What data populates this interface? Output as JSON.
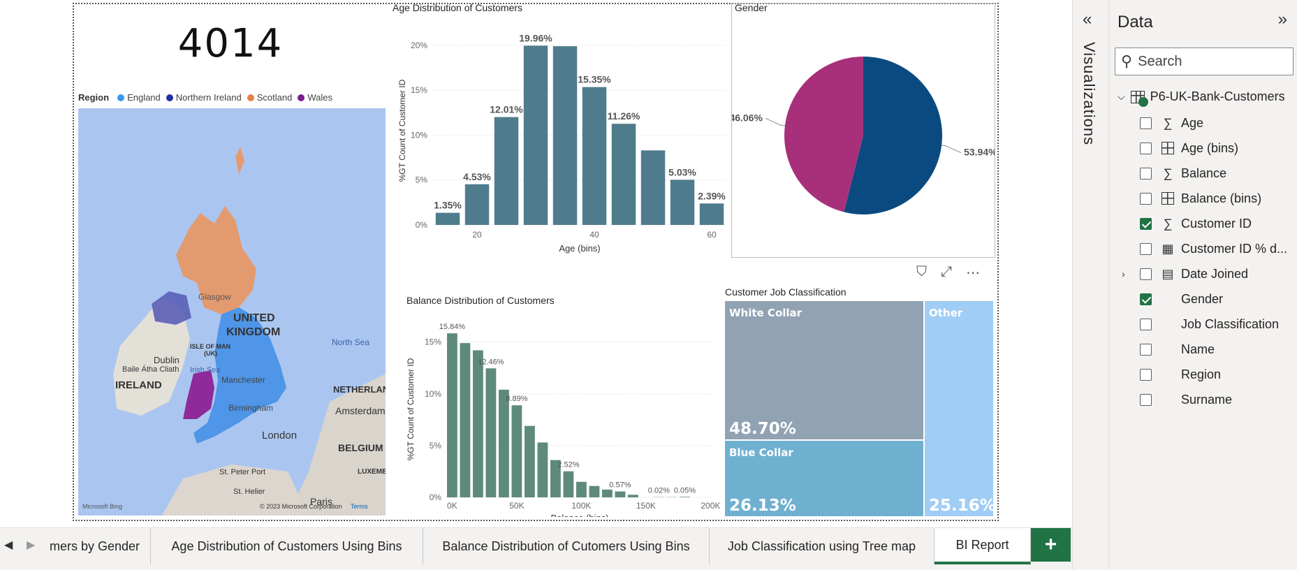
{
  "card": {
    "value": "4014"
  },
  "map": {
    "legend_label": "Region",
    "legend": [
      {
        "name": "England",
        "color": "#3599ef"
      },
      {
        "name": "Northern Ireland",
        "color": "#1f2fa0"
      },
      {
        "name": "Scotland",
        "color": "#e8804a"
      },
      {
        "name": "Wales",
        "color": "#7b1f90"
      }
    ],
    "labels": {
      "uk": "UNITED",
      "uk2": "KINGDOM",
      "ireland": "IRELAND",
      "north_sea": "North Sea",
      "irish_sea": "Irish Sea",
      "glasgow": "Glasgow",
      "dublin": "Dublin",
      "dublin2": "Baile Átha Cliath",
      "isle_of_man": "ISLE OF MAN",
      "isle_of_man2": "(UK)",
      "manchester": "Manchester",
      "birmingham": "Birmingham",
      "london": "London",
      "netherlands": "NETHERLAN",
      "amsterdam": "Amsterdam",
      "belgium": "BELGIUM",
      "luxembourg": "LUXEMBO",
      "st_peter_port": "St. Peter Port",
      "st_helier": "St. Helier",
      "paris": "Paris",
      "bing": "Microsoft Bing",
      "copyright": "© 2023 Microsoft Corporation",
      "terms": "Terms"
    }
  },
  "age_chart": {
    "title": "Age Distribution of Customers",
    "chart_data": {
      "type": "bar",
      "title": "Age Distribution of Customers",
      "xlabel": "Age (bins)",
      "ylabel": "%GT Count of Customer ID",
      "x": [
        15,
        20,
        25,
        30,
        35,
        40,
        45,
        50,
        55,
        60
      ],
      "values": [
        1.35,
        4.53,
        12.01,
        19.96,
        19.9,
        15.35,
        11.26,
        8.3,
        5.03,
        2.39
      ],
      "data_labels": [
        "1.35%",
        "4.53%",
        "12.01%",
        "19.96%",
        "",
        "15.35%",
        "11.26%",
        "",
        "5.03%",
        "2.39%"
      ],
      "xticks": [
        "20",
        "40",
        "60"
      ],
      "yticks": [
        "0%",
        "5%",
        "10%",
        "15%",
        "20%"
      ],
      "ylim": [
        0,
        21
      ]
    }
  },
  "gender_chart": {
    "title": "Gender",
    "chart_data": {
      "type": "pie",
      "title": "Gender",
      "slices": [
        {
          "label": "53.94%",
          "value": 53.94,
          "color": "#0a4a80"
        },
        {
          "label": "46.06%",
          "value": 46.06,
          "color": "#a8307a"
        }
      ]
    }
  },
  "balance_chart": {
    "title": "Balance Distribution of Customers",
    "chart_data": {
      "type": "bar",
      "title": "Balance Distribution of Customers",
      "xlabel": "Balance (bins)",
      "ylabel": "%GT Count of Customer ID",
      "x": [
        0,
        10,
        20,
        30,
        40,
        50,
        60,
        70,
        80,
        90,
        100,
        110,
        120,
        130,
        140,
        150,
        160,
        170,
        180
      ],
      "values": [
        15.84,
        14.9,
        14.2,
        12.46,
        10.4,
        8.89,
        6.9,
        5.3,
        3.6,
        2.52,
        1.5,
        1.1,
        0.75,
        0.57,
        0.25,
        0,
        0.02,
        0.02,
        0.05
      ],
      "data_labels": [
        "15.84%",
        "",
        "",
        "12.46%",
        "",
        "8.89%",
        "",
        "",
        "",
        "2.52%",
        "",
        "",
        "",
        "0.57%",
        "",
        "",
        "0.02%",
        "",
        "0.05%"
      ],
      "xticks": [
        "0K",
        "50K",
        "100K",
        "150K",
        "200K"
      ],
      "yticks": [
        "0%",
        "5%",
        "10%",
        "15%"
      ],
      "ylim": [
        0,
        17
      ]
    }
  },
  "treemap": {
    "title": "Customer Job Classification",
    "chart_data": {
      "type": "treemap",
      "items": [
        {
          "name": "White Collar",
          "value": "48.70%",
          "color": "#91a2b3"
        },
        {
          "name": "Blue Collar",
          "value": "26.13%",
          "color": "#6fb0d0"
        },
        {
          "name": "Other",
          "value": "25.16%",
          "color": "#a0cdf5"
        }
      ]
    }
  },
  "vis_pane": {
    "label": "Visualizations",
    "collapse_glyph": "«"
  },
  "data_pane": {
    "title": "Data",
    "expand_glyph": "»",
    "search_placeholder": "Search",
    "table_name": "P6-UK-Bank-Customers",
    "fields": [
      {
        "name": "Age",
        "icon": "sigma",
        "checked": false
      },
      {
        "name": "Age (bins)",
        "icon": "grid",
        "checked": false
      },
      {
        "name": "Balance",
        "icon": "sigma",
        "checked": false
      },
      {
        "name": "Balance (bins)",
        "icon": "grid",
        "checked": false
      },
      {
        "name": "Customer ID",
        "icon": "sigma",
        "checked": true
      },
      {
        "name": "Customer ID % d...",
        "icon": "calculator",
        "checked": false
      },
      {
        "name": "Date Joined",
        "icon": "calendar",
        "checked": false,
        "expandable": true
      },
      {
        "name": "Gender",
        "icon": "none",
        "checked": true
      },
      {
        "name": "Job Classification",
        "icon": "none",
        "checked": false
      },
      {
        "name": "Name",
        "icon": "none",
        "checked": false
      },
      {
        "name": "Region",
        "icon": "none",
        "checked": false
      },
      {
        "name": "Surname",
        "icon": "none",
        "checked": false
      }
    ]
  },
  "tabs": [
    {
      "label": "mers by Gender",
      "active": false
    },
    {
      "label": "Age Distribution of Customers Using Bins",
      "active": false
    },
    {
      "label": "Balance Distribution of Cutomers Using Bins",
      "active": false
    },
    {
      "label": "Job Classification using Tree map",
      "active": false
    },
    {
      "label": "BI Report",
      "active": true
    }
  ],
  "add_page_label": "+"
}
